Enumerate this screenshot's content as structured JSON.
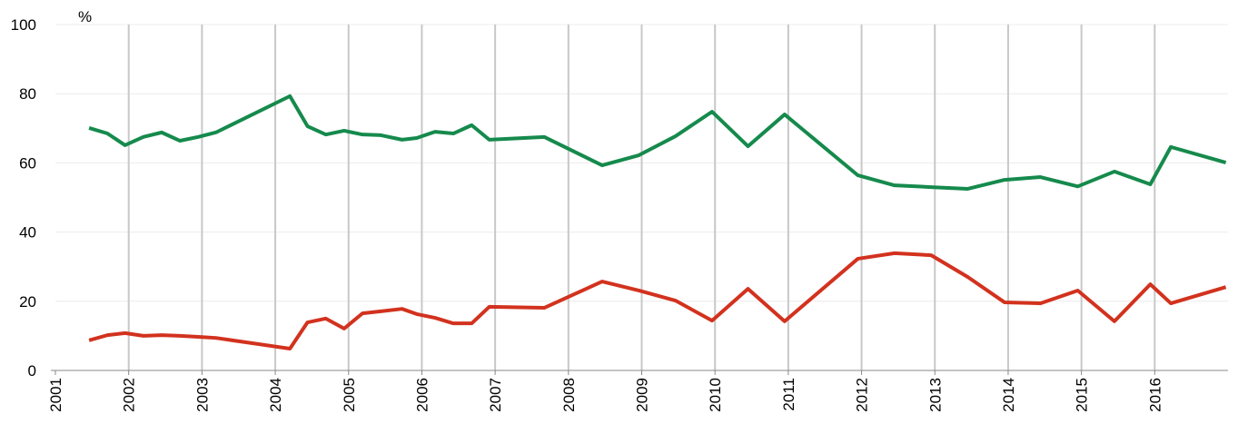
{
  "chart_data": {
    "type": "line",
    "y_label": "%",
    "x": [
      2001.46,
      2001.71,
      2001.95,
      2002.2,
      2002.45,
      2002.7,
      2002.95,
      2003.19,
      2004.2,
      2004.44,
      2004.69,
      2004.94,
      2005.19,
      2005.44,
      2005.73,
      2005.93,
      2006.18,
      2006.43,
      2006.68,
      2006.92,
      2007.67,
      2008.46,
      2008.96,
      2009.46,
      2009.96,
      2010.45,
      2010.95,
      2011.95,
      2012.45,
      2012.95,
      2013.45,
      2013.95,
      2014.44,
      2014.95,
      2015.45,
      2015.94,
      2016.22,
      2016.97
    ],
    "series": [
      {
        "color": "#158a4c",
        "values": [
          70.1,
          68.5,
          65.1,
          67.5,
          68.8,
          66.4,
          67.5,
          68.8,
          79.3,
          70.6,
          68.2,
          69.3,
          68.2,
          68.0,
          66.7,
          67.2,
          69.0,
          68.5,
          70.9,
          66.7,
          67.5,
          59.3,
          62.2,
          67.7,
          74.8,
          64.8,
          74.0,
          56.4,
          53.5,
          53.0,
          52.5,
          55.1,
          55.9,
          53.2,
          57.5,
          53.8,
          64.6,
          60.1
        ]
      },
      {
        "color": "#d2321e",
        "values": [
          8.7,
          10.2,
          10.8,
          10.0,
          10.2,
          10.0,
          9.7,
          9.4,
          6.3,
          13.9,
          15.0,
          12.1,
          16.5,
          17.1,
          17.8,
          16.3,
          15.2,
          13.6,
          13.6,
          18.4,
          18.1,
          25.7,
          23.1,
          20.2,
          14.4,
          23.6,
          14.2,
          32.3,
          33.9,
          33.3,
          27.0,
          19.7,
          19.4,
          23.1,
          14.2,
          24.9,
          19.4,
          24.1
        ]
      }
    ],
    "xlim": [
      2001,
      2017
    ],
    "xticks": [
      2001,
      2002,
      2003,
      2004,
      2005,
      2006,
      2007,
      2008,
      2009,
      2010,
      2011,
      2012,
      2013,
      2014,
      2015,
      2016
    ],
    "ylim": [
      0,
      100
    ],
    "yticks": [
      0,
      20,
      40,
      60,
      80,
      100
    ],
    "grid": true
  }
}
